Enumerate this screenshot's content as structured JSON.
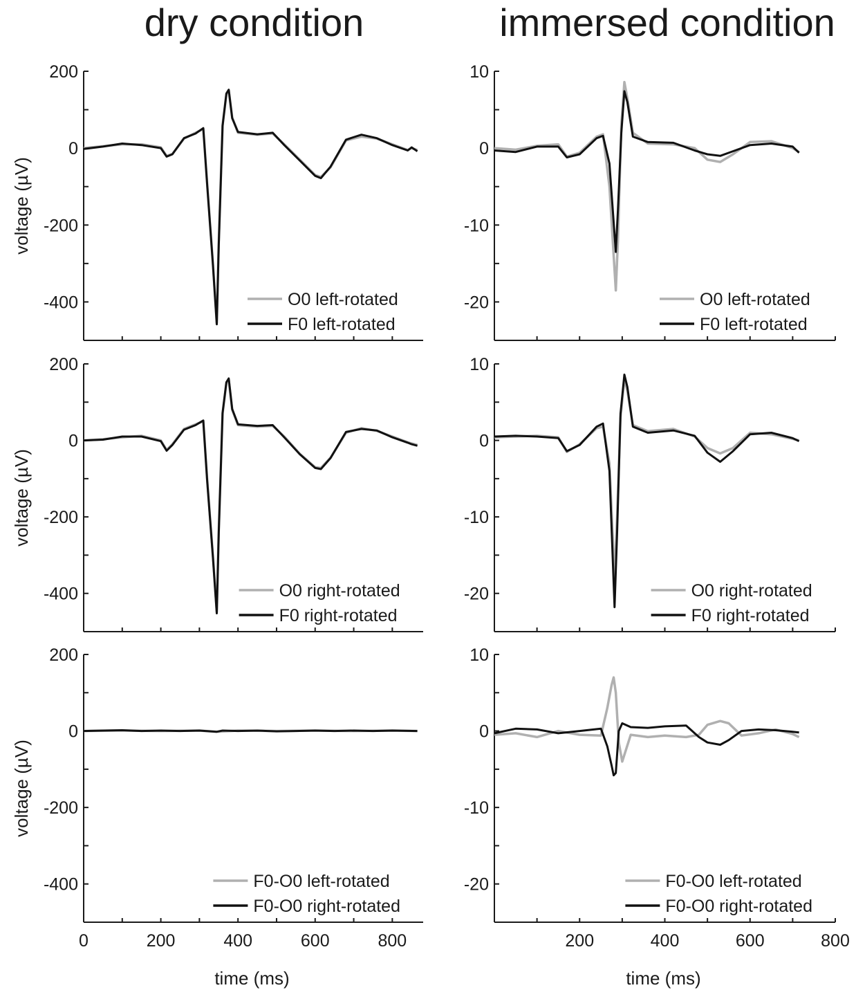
{
  "titles": {
    "dry": "dry condition",
    "immersed": "immersed condition"
  },
  "chart_data": [
    {
      "type": "line",
      "row": 1,
      "column": "dry",
      "ylabel": "voltage (µV)",
      "xlabel": "",
      "xlim": [
        0,
        880
      ],
      "ylim": [
        -500,
        200
      ],
      "yticks": [
        "200",
        "0",
        "-200",
        "-400"
      ],
      "xticks": [],
      "legend": "bottom-right",
      "series": [
        {
          "name": "O0 left-rotated",
          "color": "#b0b0b0",
          "x": [
            0,
            50,
            100,
            150,
            200,
            215,
            230,
            260,
            290,
            310,
            320,
            335,
            345,
            350,
            360,
            370,
            376,
            385,
            400,
            450,
            490,
            520,
            560,
            600,
            615,
            640,
            680,
            720,
            760,
            800,
            840,
            850,
            865
          ],
          "y": [
            0,
            5,
            10,
            10,
            2,
            -20,
            -15,
            25,
            40,
            50,
            -90,
            -300,
            -455,
            -250,
            60,
            140,
            150,
            80,
            40,
            35,
            38,
            10,
            -30,
            -70,
            -75,
            -50,
            20,
            30,
            25,
            10,
            -5,
            0,
            -5
          ]
        },
        {
          "name": "F0 left-rotated",
          "color": "#111111",
          "x": [
            0,
            50,
            100,
            150,
            200,
            215,
            230,
            260,
            290,
            310,
            320,
            335,
            345,
            350,
            360,
            370,
            376,
            385,
            400,
            450,
            490,
            520,
            560,
            600,
            615,
            640,
            680,
            720,
            760,
            800,
            840,
            850,
            865
          ],
          "y": [
            -2,
            4,
            12,
            8,
            0,
            -22,
            -16,
            26,
            38,
            52,
            -92,
            -302,
            -458,
            -255,
            58,
            142,
            152,
            78,
            42,
            36,
            40,
            8,
            -32,
            -72,
            -78,
            -48,
            22,
            35,
            26,
            8,
            -6,
            2,
            -8
          ]
        }
      ]
    },
    {
      "type": "line",
      "row": 1,
      "column": "immersed",
      "ylabel": "",
      "xlabel": "",
      "xlim": [
        0,
        800
      ],
      "ylim": [
        -25,
        10
      ],
      "yticks": [
        "10",
        "0",
        "-10",
        "-20"
      ],
      "xticks": [],
      "legend": "bottom-right",
      "series": [
        {
          "name": "O0 left-rotated",
          "color": "#b0b0b0",
          "x": [
            0,
            50,
            100,
            150,
            170,
            200,
            240,
            255,
            270,
            285,
            290,
            298,
            305,
            312,
            325,
            360,
            420,
            470,
            500,
            530,
            560,
            600,
            650,
            700,
            715
          ],
          "y": [
            0,
            -0.2,
            0.3,
            0.5,
            -1.1,
            -0.6,
            1.5,
            1.8,
            -5,
            -18.5,
            -12,
            3,
            8.6,
            6.5,
            2,
            0.6,
            0.5,
            0,
            -1.5,
            -1.8,
            -0.8,
            0.8,
            0.9,
            0,
            -0.5
          ]
        },
        {
          "name": "F0 left-rotated",
          "color": "#111111",
          "x": [
            0,
            50,
            100,
            150,
            170,
            200,
            240,
            255,
            270,
            285,
            290,
            298,
            305,
            312,
            325,
            360,
            420,
            470,
            500,
            530,
            560,
            600,
            650,
            700,
            715
          ],
          "y": [
            -0.3,
            -0.5,
            0.2,
            0.2,
            -1.2,
            -0.8,
            1.3,
            1.6,
            -2,
            -13.5,
            -8,
            2,
            7.4,
            6,
            1.5,
            0.8,
            0.7,
            -0.3,
            -0.8,
            -1,
            -0.4,
            0.4,
            0.6,
            0.2,
            -0.6
          ]
        }
      ]
    },
    {
      "type": "line",
      "row": 2,
      "column": "dry",
      "ylabel": "voltage (µV)",
      "xlabel": "",
      "xlim": [
        0,
        880
      ],
      "ylim": [
        -500,
        200
      ],
      "yticks": [
        "200",
        "0",
        "-200",
        "-400"
      ],
      "xticks": [],
      "legend": "bottom-right",
      "series": [
        {
          "name": "O0 right-rotated",
          "color": "#b0b0b0",
          "x": [
            0,
            50,
            100,
            150,
            200,
            215,
            230,
            260,
            290,
            310,
            320,
            335,
            345,
            350,
            360,
            370,
            376,
            385,
            400,
            450,
            490,
            520,
            560,
            600,
            615,
            640,
            680,
            720,
            760,
            800,
            840,
            850,
            865
          ],
          "y": [
            0,
            3,
            8,
            12,
            0,
            -25,
            -10,
            30,
            42,
            50,
            -100,
            -300,
            -448,
            -240,
            70,
            150,
            158,
            80,
            40,
            36,
            38,
            10,
            -35,
            -70,
            -72,
            -45,
            20,
            32,
            25,
            10,
            -5,
            -8,
            -12
          ]
        },
        {
          "name": "F0 right-rotated",
          "color": "#111111",
          "x": [
            0,
            50,
            100,
            150,
            200,
            215,
            230,
            260,
            290,
            310,
            320,
            335,
            345,
            350,
            360,
            370,
            376,
            385,
            400,
            450,
            490,
            520,
            560,
            600,
            615,
            640,
            680,
            720,
            760,
            800,
            840,
            850,
            865
          ],
          "y": [
            0,
            2,
            10,
            10,
            -2,
            -27,
            -12,
            28,
            40,
            52,
            -102,
            -305,
            -452,
            -245,
            72,
            152,
            162,
            82,
            42,
            38,
            40,
            8,
            -36,
            -72,
            -75,
            -46,
            22,
            30,
            26,
            8,
            -6,
            -10,
            -14
          ]
        }
      ]
    },
    {
      "type": "line",
      "row": 2,
      "column": "immersed",
      "ylabel": "",
      "xlabel": "",
      "xlim": [
        0,
        800
      ],
      "ylim": [
        -25,
        10
      ],
      "yticks": [
        "10",
        "0",
        "-10",
        "-20"
      ],
      "xticks": [],
      "legend": "bottom-right",
      "series": [
        {
          "name": "O0 right-rotated",
          "color": "#b0b0b0",
          "x": [
            0,
            50,
            100,
            150,
            170,
            200,
            240,
            255,
            270,
            282,
            288,
            296,
            305,
            312,
            325,
            360,
            420,
            470,
            500,
            530,
            560,
            600,
            650,
            700,
            715
          ],
          "y": [
            0.4,
            0.5,
            0.6,
            0.4,
            -1.5,
            -0.5,
            1.6,
            1.8,
            -3,
            -18,
            -10,
            3,
            8,
            6.5,
            2,
            1.2,
            1.5,
            0.5,
            -1,
            -1.7,
            -1,
            1,
            0.8,
            0.2,
            0
          ]
        },
        {
          "name": "F0 right-rotated",
          "color": "#111111",
          "x": [
            0,
            50,
            100,
            150,
            170,
            200,
            240,
            255,
            270,
            282,
            288,
            296,
            305,
            312,
            325,
            360,
            420,
            470,
            500,
            530,
            560,
            600,
            650,
            700,
            715
          ],
          "y": [
            0.5,
            0.6,
            0.5,
            0.3,
            -1.4,
            -0.6,
            1.8,
            2.2,
            -4,
            -21.8,
            -12,
            3.5,
            8.6,
            7,
            1.8,
            1,
            1.3,
            0.6,
            -1.6,
            -2.8,
            -1.4,
            0.8,
            1,
            0.3,
            -0.1
          ]
        }
      ]
    },
    {
      "type": "line",
      "row": 3,
      "column": "dry",
      "ylabel": "voltage (µV)",
      "xlabel": "time (ms)",
      "xlim": [
        0,
        880
      ],
      "ylim": [
        -500,
        200
      ],
      "yticks": [
        "200",
        "0",
        "-200",
        "-400"
      ],
      "xticks": [
        "0",
        "200",
        "400",
        "600",
        "800"
      ],
      "legend": "bottom-right",
      "series": [
        {
          "name": "F0-O0 left-rotated",
          "color": "#b0b0b0",
          "x": [
            0,
            100,
            200,
            300,
            345,
            400,
            500,
            600,
            700,
            800,
            865
          ],
          "y": [
            0,
            1,
            0,
            1,
            -2,
            1,
            0,
            1,
            0,
            1,
            0
          ]
        },
        {
          "name": "F0-O0 right-rotated",
          "color": "#111111",
          "x": [
            0,
            50,
            100,
            150,
            200,
            250,
            300,
            345,
            360,
            400,
            450,
            500,
            550,
            600,
            650,
            700,
            750,
            800,
            865
          ],
          "y": [
            0,
            1,
            2,
            0,
            1,
            0,
            1,
            -2,
            1,
            0,
            1,
            -1,
            0,
            1,
            0,
            1,
            0,
            1,
            0
          ]
        }
      ]
    },
    {
      "type": "line",
      "row": 3,
      "column": "immersed",
      "ylabel": "",
      "xlabel": "time (ms)",
      "xlim": [
        0,
        800
      ],
      "ylim": [
        -25,
        10
      ],
      "yticks": [
        "10",
        "0",
        "-10",
        "-20"
      ],
      "xticks": [
        "200",
        "400",
        "600",
        "800"
      ],
      "legend": "bottom-right",
      "series": [
        {
          "name": "F0-O0 left-rotated",
          "color": "#b0b0b0",
          "x": [
            0,
            50,
            100,
            150,
            200,
            250,
            265,
            275,
            280,
            285,
            292,
            300,
            320,
            360,
            400,
            450,
            480,
            500,
            530,
            550,
            580,
            620,
            660,
            700,
            715
          ],
          "y": [
            -0.5,
            -0.3,
            -0.8,
            0,
            -0.5,
            -0.6,
            3,
            6,
            7,
            5,
            -1.5,
            -4,
            -0.5,
            -0.8,
            -0.6,
            -0.8,
            -0.5,
            0.8,
            1.3,
            1,
            -0.6,
            -0.3,
            0.2,
            -0.4,
            -0.8
          ]
        },
        {
          "name": "F0-O0 right-rotated",
          "color": "#111111",
          "x": [
            0,
            50,
            100,
            150,
            200,
            250,
            265,
            275,
            280,
            285,
            292,
            300,
            320,
            360,
            400,
            450,
            480,
            500,
            530,
            550,
            580,
            620,
            660,
            700,
            715
          ],
          "y": [
            -0.3,
            0.3,
            0.2,
            -0.3,
            0,
            0.3,
            -2,
            -4.5,
            -5.8,
            -5.5,
            0,
            1,
            0.5,
            0.4,
            0.6,
            0.7,
            -0.8,
            -1.5,
            -1.8,
            -1.2,
            0,
            0.2,
            0.1,
            -0.1,
            -0.2
          ]
        }
      ]
    }
  ]
}
